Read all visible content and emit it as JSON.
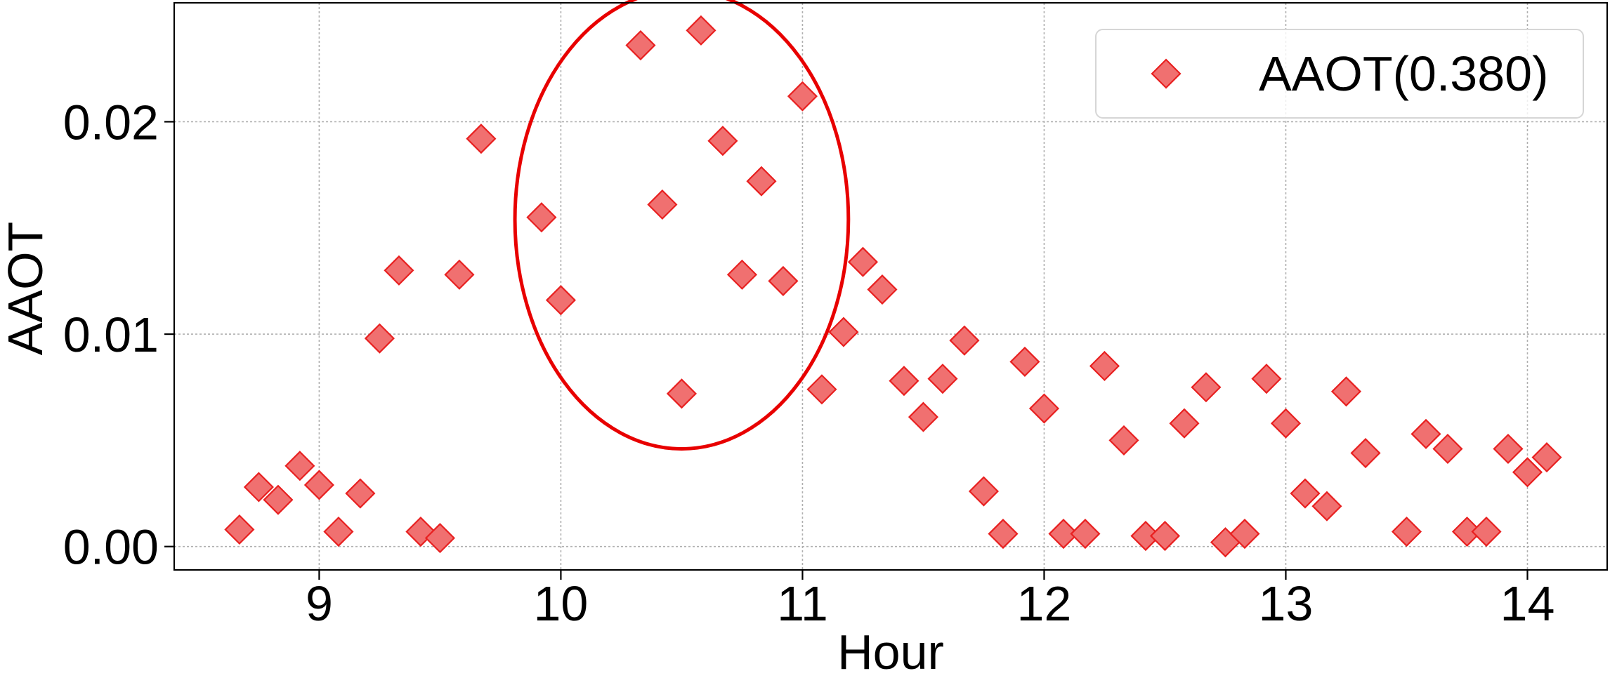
{
  "chart_data": {
    "type": "scatter",
    "xlabel": "Hour",
    "ylabel": "AAOT",
    "xlim": [
      8.4,
      14.33
    ],
    "ylim": [
      -0.0011,
      0.0256
    ],
    "xticks": [
      9,
      10,
      11,
      12,
      13,
      14
    ],
    "xtick_labels": [
      "9",
      "10",
      "11",
      "12",
      "13",
      "14"
    ],
    "yticks": [
      0.0,
      0.01,
      0.02
    ],
    "ytick_labels": [
      "0.00",
      "0.01",
      "0.02"
    ],
    "grid": true,
    "legend_position": "top-right",
    "highlight": {
      "shape": "ellipse",
      "center": [
        10.5,
        0.0154
      ],
      "radius_x": 0.69,
      "radius_y": 0.0108,
      "color": "#e80000"
    },
    "series": [
      {
        "name": "AAOT(0.380)",
        "marker": "diamond",
        "color": "#f07070",
        "edge_color": "#e82020",
        "points": [
          [
            8.67,
            0.0008
          ],
          [
            8.75,
            0.0028
          ],
          [
            8.83,
            0.0022
          ],
          [
            8.92,
            0.0038
          ],
          [
            9.0,
            0.0029
          ],
          [
            9.08,
            0.0007
          ],
          [
            9.17,
            0.0025
          ],
          [
            9.25,
            0.0098
          ],
          [
            9.33,
            0.013
          ],
          [
            9.42,
            0.0007
          ],
          [
            9.5,
            0.0004
          ],
          [
            9.58,
            0.0128
          ],
          [
            9.67,
            0.0192
          ],
          [
            9.92,
            0.0155
          ],
          [
            10.0,
            0.0116
          ],
          [
            10.33,
            0.0236
          ],
          [
            10.42,
            0.0161
          ],
          [
            10.5,
            0.0072
          ],
          [
            10.58,
            0.0243
          ],
          [
            10.67,
            0.0191
          ],
          [
            10.75,
            0.0128
          ],
          [
            10.83,
            0.0172
          ],
          [
            10.92,
            0.0125
          ],
          [
            11.0,
            0.0212
          ],
          [
            11.08,
            0.0074
          ],
          [
            11.17,
            0.0101
          ],
          [
            11.25,
            0.0134
          ],
          [
            11.33,
            0.0121
          ],
          [
            11.42,
            0.0078
          ],
          [
            11.5,
            0.0061
          ],
          [
            11.58,
            0.0079
          ],
          [
            11.67,
            0.0097
          ],
          [
            11.75,
            0.0026
          ],
          [
            11.83,
            0.0006
          ],
          [
            11.92,
            0.0087
          ],
          [
            12.0,
            0.0065
          ],
          [
            12.08,
            0.0006
          ],
          [
            12.17,
            0.0006
          ],
          [
            12.25,
            0.0085
          ],
          [
            12.33,
            0.005
          ],
          [
            12.42,
            0.0005
          ],
          [
            12.5,
            0.0005
          ],
          [
            12.58,
            0.0058
          ],
          [
            12.67,
            0.0075
          ],
          [
            12.75,
            0.0002
          ],
          [
            12.83,
            0.0006
          ],
          [
            12.92,
            0.0079
          ],
          [
            13.0,
            0.0058
          ],
          [
            13.08,
            0.0025
          ],
          [
            13.17,
            0.0019
          ],
          [
            13.25,
            0.0073
          ],
          [
            13.33,
            0.0044
          ],
          [
            13.5,
            0.0007
          ],
          [
            13.58,
            0.0053
          ],
          [
            13.67,
            0.0046
          ],
          [
            13.75,
            0.0007
          ],
          [
            13.83,
            0.0007
          ],
          [
            13.92,
            0.0046
          ],
          [
            14.0,
            0.0035
          ],
          [
            14.08,
            0.0042
          ]
        ]
      }
    ]
  }
}
